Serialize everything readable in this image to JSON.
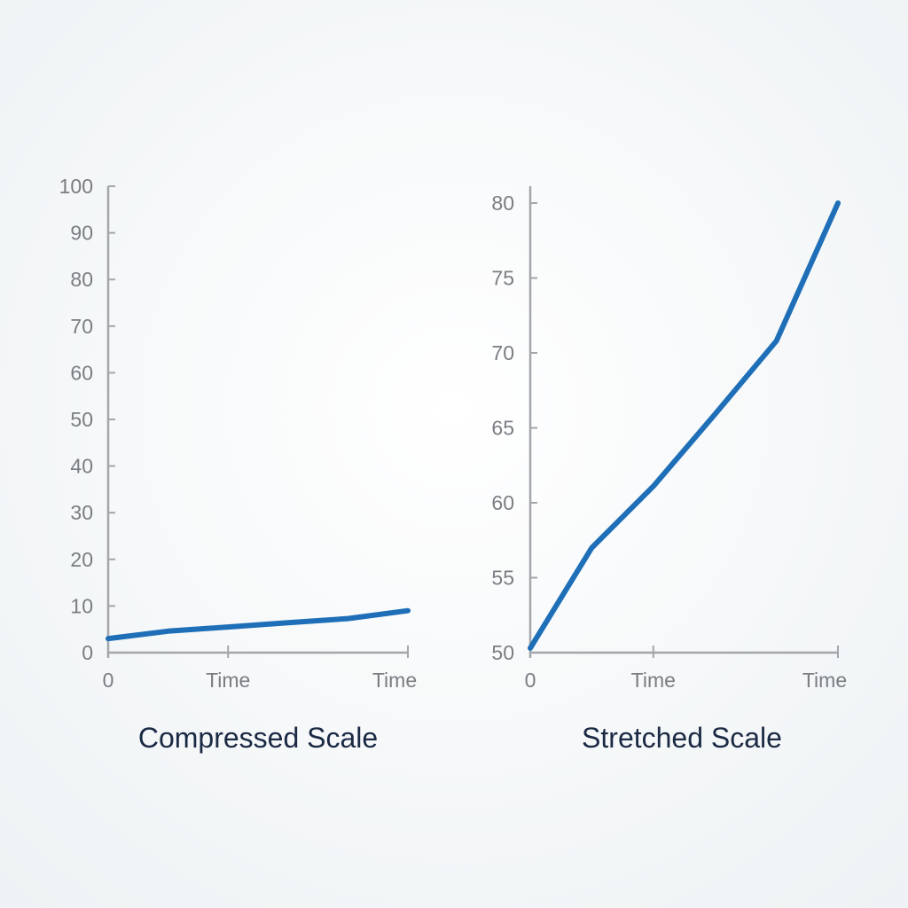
{
  "colors": {
    "series": "#1e6fb8",
    "axis": "#a3a6aa",
    "tick_text": "#7a7d82",
    "title_text": "#1b2a44"
  },
  "chart_data": [
    {
      "type": "line",
      "title": "Compressed Scale",
      "xlabel": "",
      "ylabel": "",
      "ylim": [
        0,
        100
      ],
      "xlim": [
        0,
        1
      ],
      "grid": false,
      "yticks": [
        0,
        10,
        20,
        30,
        40,
        50,
        60,
        70,
        80,
        90,
        100
      ],
      "xticks": [
        {
          "value": 0,
          "label": "0"
        },
        {
          "value": 0.4,
          "label": "Time"
        },
        {
          "value": 1,
          "label": "Time"
        }
      ],
      "series": [
        {
          "x": [
            0,
            0.2,
            0.4,
            0.6,
            0.8,
            1
          ],
          "y": [
            3,
            4.6,
            5.5,
            6.4,
            7.3,
            9
          ]
        }
      ]
    },
    {
      "type": "line",
      "title": "Stretched Scale",
      "xlabel": "",
      "ylabel": "",
      "ylim": [
        50,
        80
      ],
      "xlim": [
        0,
        1
      ],
      "grid": false,
      "yticks": [
        50,
        55,
        60,
        65,
        70,
        75,
        80
      ],
      "xticks": [
        {
          "value": 0,
          "label": "0"
        },
        {
          "value": 0.4,
          "label": "Time"
        },
        {
          "value": 1,
          "label": "Time"
        }
      ],
      "series": [
        {
          "x": [
            0,
            0.2,
            0.4,
            0.6,
            0.8,
            1
          ],
          "y": [
            50.3,
            57,
            61.1,
            65.9,
            70.8,
            80
          ]
        }
      ]
    }
  ]
}
